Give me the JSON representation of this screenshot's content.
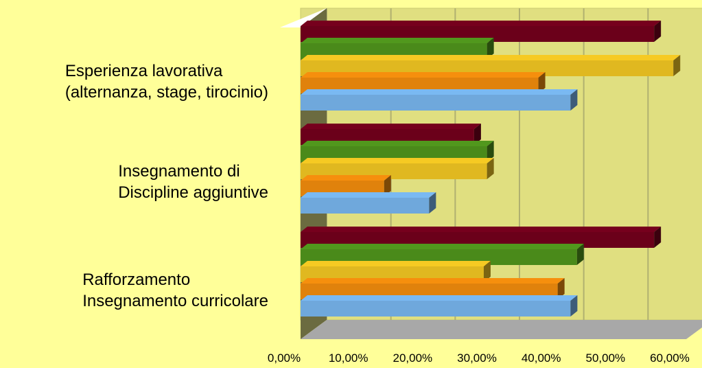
{
  "chart_data": {
    "type": "bar",
    "orientation": "horizontal",
    "style": "3d",
    "categories": [
      "Esperienza lavorativa\n(alternanza, stage, tirocinio)",
      "Insegnamento di\nDiscipline aggiuntive",
      "Rafforzamento\nInsegnamento curricolare"
    ],
    "series": [
      {
        "color": "#6FA8DC",
        "values": [
          42,
          20,
          42
        ]
      },
      {
        "color": "#E0820C",
        "values": [
          37,
          13,
          40
        ]
      },
      {
        "color": "#E0B820",
        "values": [
          58,
          29,
          28.5
        ]
      },
      {
        "color": "#4A8A1A",
        "values": [
          29,
          29,
          43
        ]
      },
      {
        "color": "#6B001A",
        "values": [
          55,
          27,
          55
        ]
      }
    ],
    "x_ticks": [
      "0,00%",
      "10,00%",
      "20,00%",
      "30,00%",
      "40,00%",
      "50,00%",
      "60,00%"
    ],
    "xlim": [
      0,
      60
    ],
    "grid": true,
    "legend": "none",
    "colors": {
      "page_background": "#FFFF99",
      "plot_wall": "#E0DF80",
      "side_wall": "#6B6B40",
      "floor": "#A8A8A8",
      "gridline": "#B0B070"
    }
  }
}
